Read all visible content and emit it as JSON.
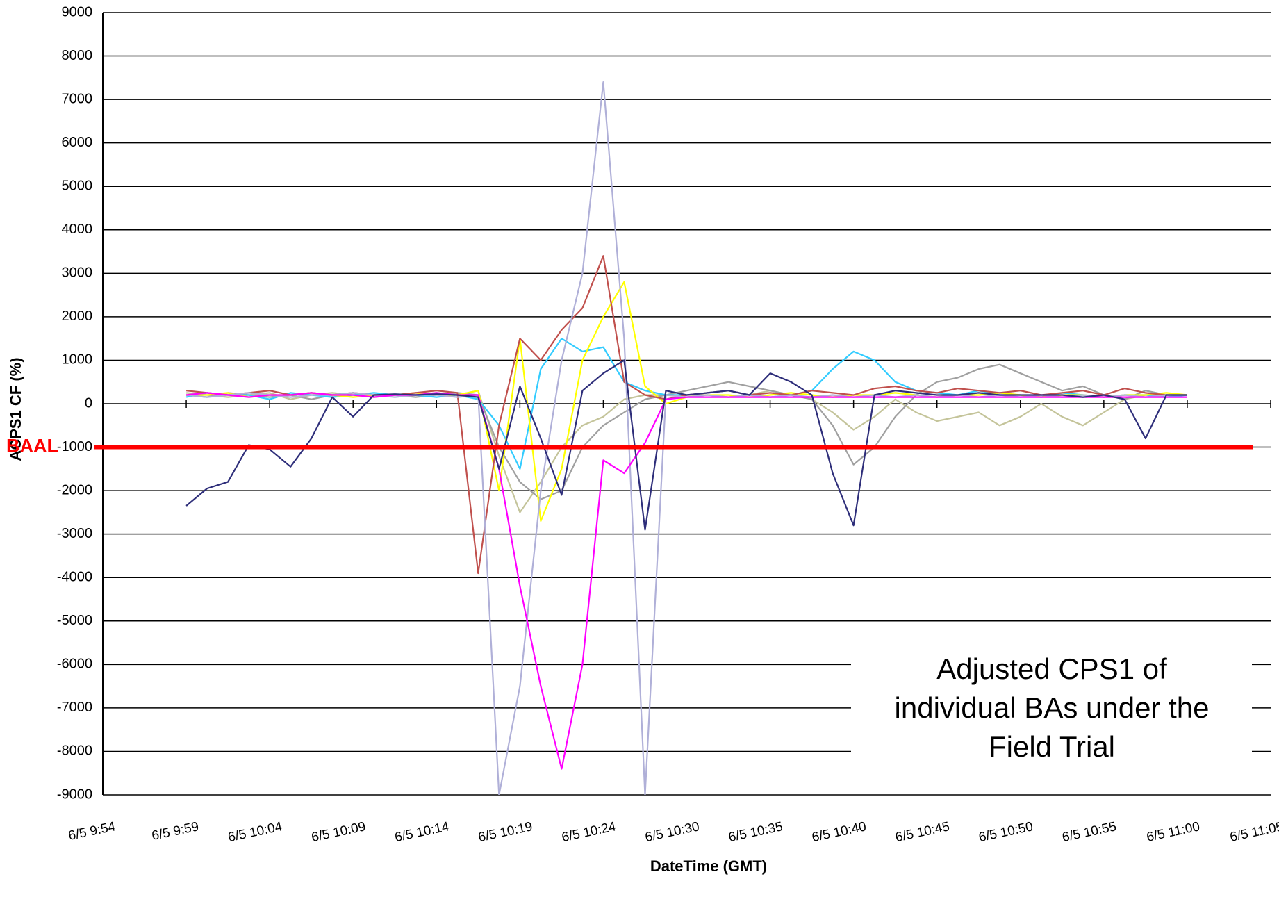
{
  "chart_data": {
    "type": "line",
    "x_label": "DateTime (GMT)",
    "y_label": "ACPS1 CF (%)",
    "annotation": [
      "Adjusted CPS1 of",
      "individual BAs under the",
      "Field Trial"
    ],
    "baal": {
      "label": "BAAL",
      "value": -1000,
      "color": "#ff0000"
    },
    "categories": [
      "6/5 9:54",
      null,
      null,
      null,
      "6/5 9:59",
      null,
      null,
      null,
      "6/5 10:04",
      null,
      null,
      null,
      "6/5 10:09",
      null,
      null,
      null,
      "6/5 10:14",
      null,
      null,
      null,
      "6/5 10:19",
      null,
      null,
      null,
      "6/5 10:24",
      null,
      null,
      null,
      "6/5 10:30",
      null,
      null,
      null,
      "6/5 10:35",
      null,
      null,
      null,
      "6/5 10:40",
      null,
      null,
      null,
      "6/5 10:45",
      null,
      null,
      null,
      "6/5 10:50",
      null,
      null,
      null,
      "6/5 10:55",
      null,
      null,
      null,
      "6/5 11:00",
      null,
      null,
      null,
      "6/5 11:05"
    ],
    "ylim": [
      -9000,
      9000
    ],
    "yticks": [
      9000,
      8000,
      7000,
      6000,
      5000,
      4000,
      3000,
      2000,
      1000,
      0,
      -1000,
      -2000,
      -3000,
      -4000,
      -5000,
      -6000,
      -7000,
      -8000,
      -9000
    ],
    "grid": true,
    "series": [
      {
        "color": "#c4c49a",
        "values": [
          null,
          null,
          null,
          null,
          250,
          200,
          150,
          200,
          250,
          100,
          200,
          250,
          200,
          150,
          200,
          200,
          250,
          200,
          300,
          -1200,
          -2500,
          -1800,
          -1000,
          -500,
          -300,
          100,
          200,
          200,
          200,
          200,
          150,
          200,
          300,
          200,
          100,
          -200,
          -600,
          -300,
          100,
          -200,
          -400,
          -300,
          -200,
          -500,
          -300,
          0,
          -300,
          -500,
          -200,
          100,
          200,
          200,
          200,
          null,
          null,
          null,
          null
        ]
      },
      {
        "color": "#a0a0a0",
        "values": [
          null,
          null,
          null,
          null,
          200,
          150,
          250,
          200,
          150,
          200,
          100,
          200,
          250,
          200,
          200,
          150,
          200,
          250,
          200,
          -1000,
          -1800,
          -2200,
          -2000,
          -1000,
          -500,
          -200,
          100,
          200,
          300,
          400,
          500,
          400,
          300,
          200,
          100,
          -500,
          -1400,
          -1000,
          -300,
          200,
          500,
          600,
          800,
          900,
          700,
          500,
          300,
          400,
          200,
          100,
          300,
          200,
          200,
          null,
          null,
          null,
          null
        ]
      },
      {
        "color": "#33ccff",
        "values": [
          null,
          null,
          null,
          null,
          150,
          250,
          200,
          200,
          100,
          250,
          200,
          150,
          200,
          250,
          200,
          200,
          150,
          200,
          100,
          -500,
          -1500,
          800,
          1500,
          1200,
          1300,
          500,
          300,
          200,
          200,
          250,
          300,
          200,
          150,
          200,
          300,
          800,
          1200,
          1000,
          500,
          300,
          250,
          200,
          300,
          200,
          200,
          150,
          250,
          200,
          150,
          200,
          200,
          150,
          200,
          null,
          null,
          null,
          null
        ]
      },
      {
        "color": "#ffff00",
        "values": [
          null,
          null,
          null,
          null,
          200,
          200,
          250,
          150,
          200,
          200,
          250,
          200,
          150,
          200,
          200,
          250,
          200,
          200,
          300,
          -2000,
          1500,
          -2700,
          -1500,
          1000,
          2000,
          2800,
          400,
          0,
          150,
          200,
          200,
          150,
          200,
          250,
          200,
          150,
          200,
          200,
          250,
          200,
          150,
          200,
          200,
          250,
          200,
          150,
          200,
          200,
          150,
          200,
          200,
          250,
          200,
          null,
          null,
          null,
          null
        ]
      },
      {
        "color": "#c0504d",
        "values": [
          null,
          null,
          null,
          null,
          300,
          250,
          200,
          250,
          300,
          200,
          250,
          200,
          250,
          200,
          200,
          250,
          300,
          250,
          -3900,
          -500,
          1500,
          1000,
          1700,
          2200,
          3400,
          500,
          200,
          100,
          200,
          250,
          300,
          200,
          250,
          200,
          300,
          250,
          200,
          350,
          400,
          300,
          250,
          350,
          300,
          250,
          300,
          200,
          250,
          300,
          200,
          350,
          250,
          200,
          200,
          null,
          null,
          null,
          null
        ]
      },
      {
        "color": "#b0b0d8",
        "values": [
          null,
          null,
          null,
          null,
          200,
          150,
          200,
          250,
          200,
          150,
          200,
          200,
          250,
          200,
          150,
          200,
          200,
          150,
          200,
          -9000,
          -6500,
          -2000,
          1000,
          3000,
          7400,
          1500,
          -9000,
          200,
          150,
          200,
          150,
          200,
          150,
          200,
          150,
          200,
          150,
          200,
          150,
          200,
          150,
          200,
          150,
          200,
          150,
          200,
          150,
          200,
          150,
          200,
          150,
          200,
          200,
          null,
          null,
          null,
          null
        ]
      },
      {
        "color": "#ff00ff",
        "values": [
          null,
          null,
          null,
          null,
          200,
          250,
          200,
          150,
          200,
          200,
          250,
          200,
          200,
          150,
          200,
          200,
          250,
          200,
          200,
          -1500,
          -4200,
          -6500,
          -8400,
          -6000,
          -1300,
          -1600,
          -900,
          100,
          150,
          150,
          150,
          150,
          150,
          150,
          150,
          150,
          150,
          150,
          150,
          150,
          150,
          150,
          150,
          150,
          150,
          150,
          150,
          150,
          150,
          150,
          150,
          150,
          150,
          null,
          null,
          null,
          null
        ]
      },
      {
        "color": "#2e2e7a",
        "values": [
          null,
          null,
          null,
          null,
          -2350,
          -1950,
          -1800,
          -950,
          -1050,
          -1450,
          -800,
          150,
          -300,
          200,
          220,
          200,
          220,
          200,
          150,
          -1500,
          400,
          -800,
          -2100,
          300,
          700,
          1000,
          -2900,
          300,
          200,
          250,
          300,
          200,
          700,
          500,
          200,
          -1600,
          -2800,
          200,
          300,
          250,
          200,
          200,
          250,
          200,
          200,
          200,
          200,
          150,
          200,
          100,
          -800,
          200,
          200,
          null,
          null,
          null,
          null
        ]
      }
    ]
  }
}
